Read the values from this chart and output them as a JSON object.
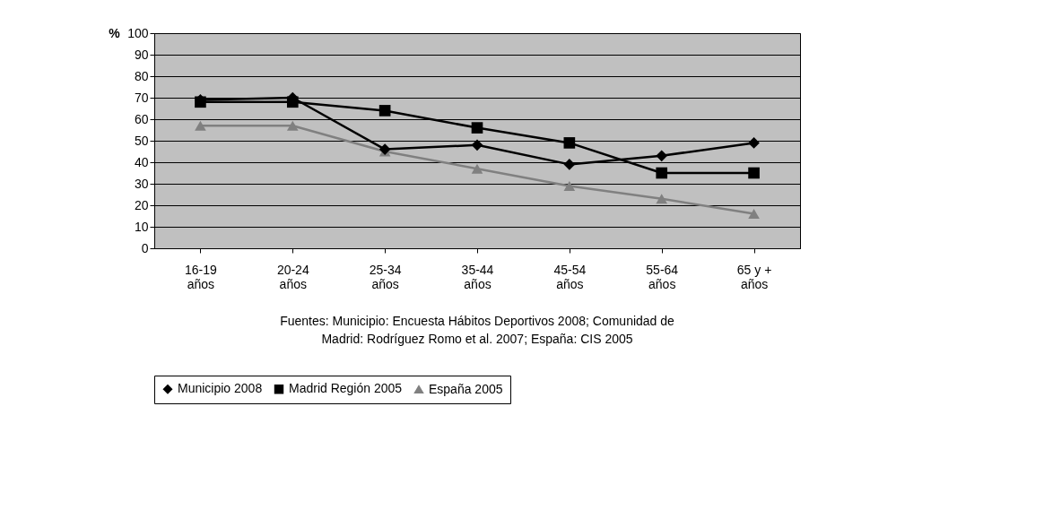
{
  "chart_data": {
    "type": "line",
    "ylabel": "%",
    "categories": [
      "16-19\naños",
      "20-24\naños",
      "25-34\naños",
      "35-44\naños",
      "45-54\naños",
      "55-64\naños",
      "65 y +\naños"
    ],
    "series": [
      {
        "name": "Municipio 2008",
        "color": "#000000",
        "marker": "diamond",
        "values": [
          69,
          70,
          46,
          48,
          39,
          43,
          49
        ]
      },
      {
        "name": "Madrid Región 2005",
        "color": "#000000",
        "marker": "square",
        "values": [
          68,
          68,
          64,
          56,
          49,
          35,
          35
        ]
      },
      {
        "name": "España 2005",
        "color": "#808080",
        "marker": "triangle",
        "values": [
          57,
          57,
          45,
          37,
          29,
          23,
          16
        ]
      }
    ],
    "ylim": [
      0,
      100
    ],
    "yticks": [
      0,
      10,
      20,
      30,
      40,
      50,
      60,
      70,
      80,
      90,
      100
    ],
    "grid": "y",
    "legend": "bottom",
    "line_style": "solid",
    "annotations": [
      "Fuentes: Municipio: Encuesta Hábitos Deportivos 2008; Comunidad de\nMadrid: Rodríguez Romo et al. 2007; España: CIS 2005"
    ]
  }
}
